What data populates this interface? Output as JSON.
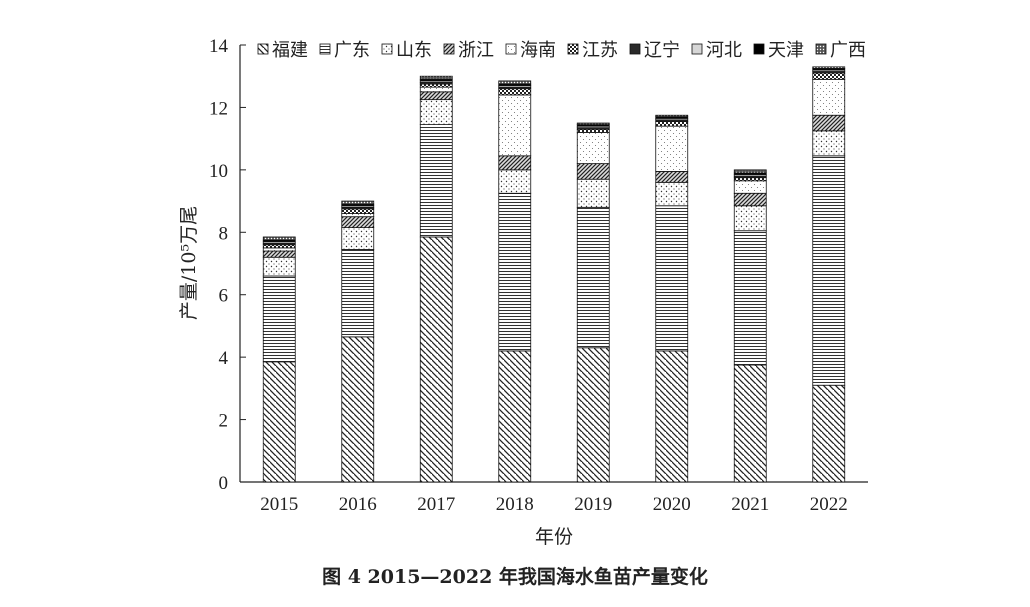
{
  "caption": "图 4  2015—2022 年我国海水鱼苗产量变化",
  "chart_data": {
    "type": "bar",
    "stacked": true,
    "xlabel": "年份",
    "ylabel": "产量/10⁵万尾",
    "ylim": [
      0,
      14
    ],
    "yticks": [
      0,
      2,
      4,
      6,
      8,
      10,
      12,
      14
    ],
    "categories": [
      "2015",
      "2016",
      "2017",
      "2018",
      "2019",
      "2020",
      "2021",
      "2022"
    ],
    "legend_position": "top",
    "series": [
      {
        "name": "福建",
        "pattern": "diag-down",
        "values": [
          3.85,
          4.65,
          7.85,
          4.2,
          4.3,
          4.2,
          3.75,
          3.1
        ]
      },
      {
        "name": "广东",
        "pattern": "horiz-lines",
        "values": [
          2.75,
          2.8,
          3.6,
          5.05,
          4.5,
          4.65,
          4.3,
          7.35
        ]
      },
      {
        "name": "山东",
        "pattern": "sparse-dots",
        "values": [
          0.6,
          0.7,
          0.8,
          0.75,
          0.9,
          0.75,
          0.8,
          0.8
        ]
      },
      {
        "name": "浙江",
        "pattern": "diag-up",
        "values": [
          0.2,
          0.35,
          0.25,
          0.45,
          0.5,
          0.35,
          0.4,
          0.5
        ]
      },
      {
        "name": "海南",
        "pattern": "light-dots",
        "values": [
          0.1,
          0.1,
          0.15,
          1.95,
          1.0,
          1.45,
          0.4,
          1.15
        ]
      },
      {
        "name": "江苏",
        "pattern": "checker",
        "values": [
          0.1,
          0.15,
          0.1,
          0.2,
          0.1,
          0.15,
          0.1,
          0.2
        ]
      },
      {
        "name": "辽宁",
        "pattern": "solid-dark",
        "values": [
          0.05,
          0.05,
          0.05,
          0.05,
          0.05,
          0.05,
          0.05,
          0.05
        ]
      },
      {
        "name": "河北",
        "pattern": "light-gray",
        "values": [
          0.05,
          0.05,
          0.05,
          0.05,
          0.05,
          0.05,
          0.05,
          0.05
        ]
      },
      {
        "name": "天津",
        "pattern": "solid-black",
        "values": [
          0.05,
          0.05,
          0.05,
          0.05,
          0.05,
          0.05,
          0.05,
          0.05
        ]
      },
      {
        "name": "广西",
        "pattern": "dense-dots",
        "values": [
          0.1,
          0.1,
          0.1,
          0.1,
          0.05,
          0.05,
          0.1,
          0.05
        ]
      }
    ]
  }
}
